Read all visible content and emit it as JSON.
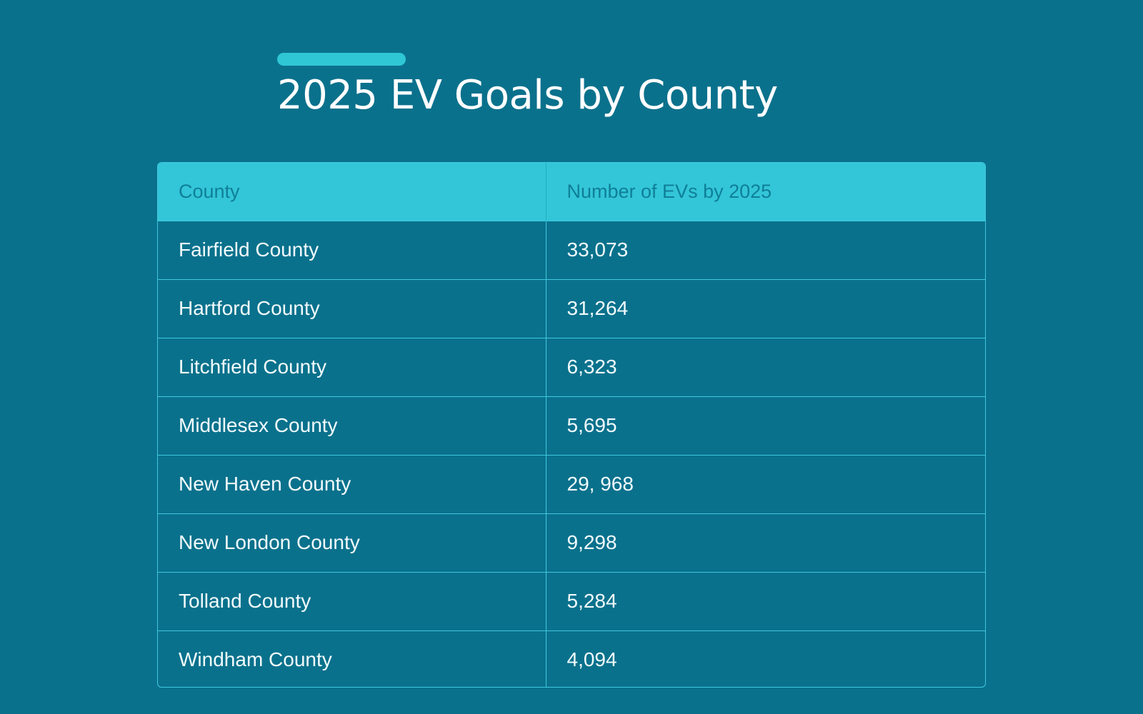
{
  "page": {
    "title": "2025 EV Goals by County"
  },
  "table": {
    "headers": [
      "County",
      "Number of EVs by 2025"
    ],
    "rows": [
      {
        "county": "Fairfield County",
        "evs": "33,073"
      },
      {
        "county": "Hartford County",
        "evs": "31,264"
      },
      {
        "county": "Litchfield County",
        "evs": "6,323"
      },
      {
        "county": "Middlesex County",
        "evs": "5,695"
      },
      {
        "county": "New Haven County",
        "evs": "29, 968"
      },
      {
        "county": "New London County",
        "evs": "9,298"
      },
      {
        "county": "Tolland County",
        "evs": "5,284"
      },
      {
        "county": "Windham County",
        "evs": "4,094"
      }
    ]
  },
  "colors": {
    "background": "#0a718c",
    "accent": "#2fc6d6",
    "header_bg": "#33c6d8",
    "header_text": "#0f7f98",
    "grid_line": "#3fc8de"
  }
}
